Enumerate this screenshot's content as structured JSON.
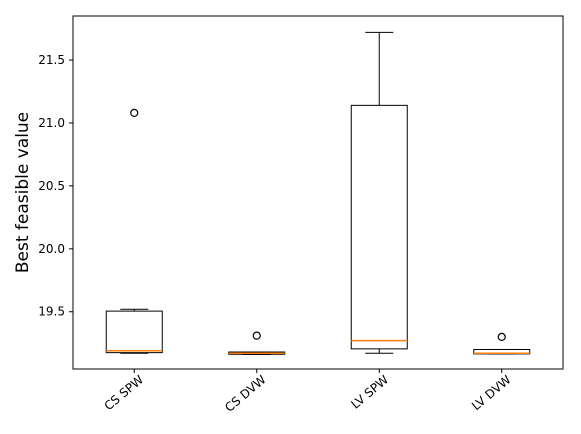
{
  "chart_data": {
    "type": "boxplot",
    "title": "",
    "xlabel": "",
    "ylabel": "Best feasible value",
    "ylim": [
      19.045,
      21.85
    ],
    "yticks": [
      19.5,
      20.0,
      20.5,
      21.0,
      21.5
    ],
    "ytick_labels": [
      "19.5",
      "20.0",
      "20.5",
      "21.0",
      "21.5"
    ],
    "grid": false,
    "legend": "none",
    "categories": [
      "CS SPW",
      "CS DVW",
      "LV SPW",
      "LV DVW"
    ],
    "boxes": [
      {
        "whislo": 19.17,
        "q1": 19.175,
        "med": 19.19,
        "q3": 19.505,
        "whishi": 19.52,
        "fliers": [
          21.08
        ]
      },
      {
        "whislo": 19.16,
        "q1": 19.162,
        "med": 19.17,
        "q3": 19.18,
        "whishi": 19.18,
        "fliers": [
          19.31
        ]
      },
      {
        "whislo": 19.17,
        "q1": 19.205,
        "med": 19.27,
        "q3": 21.14,
        "whishi": 21.72,
        "fliers": []
      },
      {
        "whislo": 19.165,
        "q1": 19.165,
        "med": 19.17,
        "q3": 19.2,
        "whishi": 19.2,
        "fliers": [
          19.3
        ]
      }
    ],
    "colors": {
      "box": "#000000",
      "median": "#ff7f0e"
    }
  }
}
